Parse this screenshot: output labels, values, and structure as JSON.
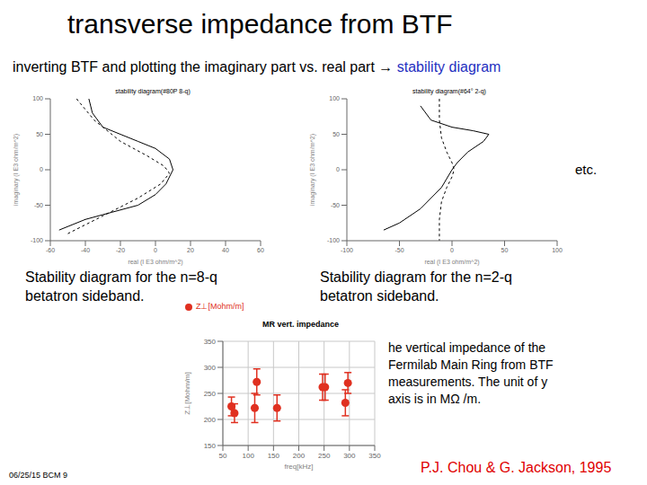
{
  "slide": {
    "title": "transverse impedance from BTF",
    "subtitle": [
      {
        "text": "inverting BTF and plotting the imaginary part vs. real part → ",
        "color": "#000000"
      },
      {
        "text": "stability diagram",
        "color": "#1f2fbf"
      }
    ],
    "etc": "etc.",
    "captions": [
      [
        "Stability diagram for the n=8-q",
        "betatron sideband."
      ],
      [
        "Stability diagram for the n=2-q",
        "betatron sideband."
      ]
    ],
    "note": [
      "he vertical impedance of the",
      "Fermilab Main Ring from BTF",
      "measurements. The unit of y",
      "axis is in MΩ /m."
    ],
    "footer": "06/25/15 BCM 9",
    "credit": {
      "text": "P.J. Chou & G. Jackson, 1995",
      "color": "#e00000"
    }
  },
  "chart_data": [
    {
      "type": "line",
      "title": "stability diagram(#80P 8-q)",
      "x_label": "real (I E3 ohm/m^2)",
      "y_label": "imaginary (I E3 ohm/m^2)",
      "xlim": [
        -60,
        60
      ],
      "xticks": [
        -60,
        -40,
        -20,
        0,
        20,
        40,
        60
      ],
      "ylim": [
        -100,
        100
      ],
      "yticks": [
        -100,
        -50,
        0,
        50,
        100
      ],
      "series": [
        {
          "color": "#000000",
          "line_style": "solid",
          "x": [
            -38,
            -36,
            -30,
            -20,
            -10,
            0,
            8,
            10,
            6,
            0,
            -10,
            -25,
            -40,
            -55
          ],
          "values": [
            100,
            80,
            60,
            50,
            40,
            30,
            15,
            0,
            -20,
            -35,
            -50,
            -60,
            -70,
            -85
          ]
        },
        {
          "color": "#000000",
          "line_style": "dashed",
          "x": [
            -45,
            -35,
            -20,
            -5,
            5,
            8,
            3,
            -10,
            -30,
            -50
          ],
          "values": [
            100,
            70,
            40,
            20,
            5,
            -5,
            -20,
            -40,
            -65,
            -90
          ]
        }
      ]
    },
    {
      "type": "line",
      "title": "stability diagram(#64° 2-q)",
      "x_label": "real (I E3 ohm/m^2)",
      "y_label": "imaginary (I E3 ohm/m^2)",
      "xlim": [
        -100,
        100
      ],
      "xticks": [
        -100,
        -50,
        0,
        50,
        100
      ],
      "ylim": [
        -100,
        100
      ],
      "yticks": [
        -100,
        -50,
        0,
        50,
        100
      ],
      "series": [
        {
          "color": "#000000",
          "line_style": "solid",
          "x": [
            -30,
            -20,
            0,
            20,
            35,
            30,
            15,
            5,
            0,
            -10,
            -30,
            -50,
            -65
          ],
          "values": [
            90,
            70,
            60,
            55,
            50,
            40,
            25,
            10,
            0,
            -25,
            -55,
            -75,
            -85
          ]
        },
        {
          "color": "#000000",
          "line_style": "dashed",
          "x": [
            -12,
            -12,
            -10,
            -5,
            0,
            2,
            0,
            -5,
            -10,
            -12,
            -12
          ],
          "values": [
            100,
            70,
            45,
            25,
            10,
            0,
            -10,
            -25,
            -45,
            -70,
            -100
          ]
        }
      ]
    },
    {
      "type": "scatter",
      "title": "MR vert. impedance",
      "x_label": "freq[kHz]",
      "y_label": "Z⊥[Mohm/m]",
      "legend": "top-left",
      "grid": true,
      "xlim": [
        50,
        350
      ],
      "xticks": [
        50,
        100,
        150,
        200,
        250,
        300,
        350
      ],
      "ylim": [
        150,
        350
      ],
      "yticks": [
        150,
        200,
        250,
        300,
        350
      ],
      "series": [
        {
          "name": "Z⊥[Mohm/m]",
          "color": "#e03020",
          "marker": "circle",
          "x": [
            67,
            73,
            117,
            113,
            157,
            247,
            252,
            297,
            292
          ],
          "values": [
            225,
            212,
            272,
            222,
            222,
            262,
            262,
            270,
            232
          ],
          "errors": [
            18,
            18,
            25,
            28,
            25,
            25,
            25,
            20,
            25
          ]
        }
      ]
    }
  ]
}
